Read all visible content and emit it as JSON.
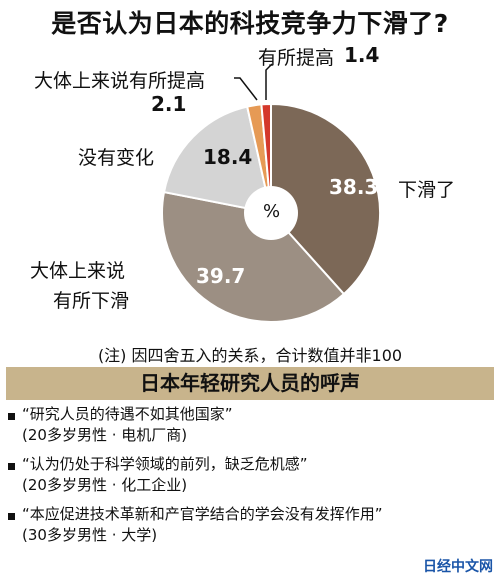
{
  "chart_data": {
    "type": "pie",
    "title": "是否认为日本的科技竞争力下滑了?",
    "center_label": "%",
    "slices": [
      {
        "label": "下滑了",
        "value": 38.3,
        "color": "#7c6857",
        "value_text": "38.3"
      },
      {
        "label": "大体上来说有所下滑",
        "value": 39.7,
        "color": "#9c8f83",
        "value_text": "39.7"
      },
      {
        "label": "没有变化",
        "value": 18.4,
        "color": "#d4d4d4",
        "value_text": "18.4"
      },
      {
        "label": "大体上来说有所提高",
        "value": 2.1,
        "color": "#e69a55",
        "value_text": "2.1"
      },
      {
        "label": "有所提高",
        "value": 1.4,
        "color": "#d4382b",
        "value_text": "1.4"
      }
    ]
  },
  "labels": {
    "slide": "下滑了",
    "slight_slide_l1": "大体上来说",
    "slight_slide_l2": "有所下滑",
    "no_change": "没有变化",
    "slight_up": "大体上来说有所提高",
    "up": "有所提高"
  },
  "note": "(注) 因四舍五入的关系，合计数值并非100",
  "banner": "日本年轻研究人员的呼声",
  "quotes": [
    {
      "text": "“研究人员的待遇不如其他国家”",
      "source": "(20多岁男性 · 电机厂商)"
    },
    {
      "text": "“认为仍处于科学领域的前列，缺乏危机感”",
      "source": "(20多岁男性 · 化工企业)"
    },
    {
      "text": "“本应促进技术革新和产官学结合的学会没有发挥作用”",
      "source": "(30多岁男性 · 大学)"
    }
  ],
  "logo": "日经中文网"
}
